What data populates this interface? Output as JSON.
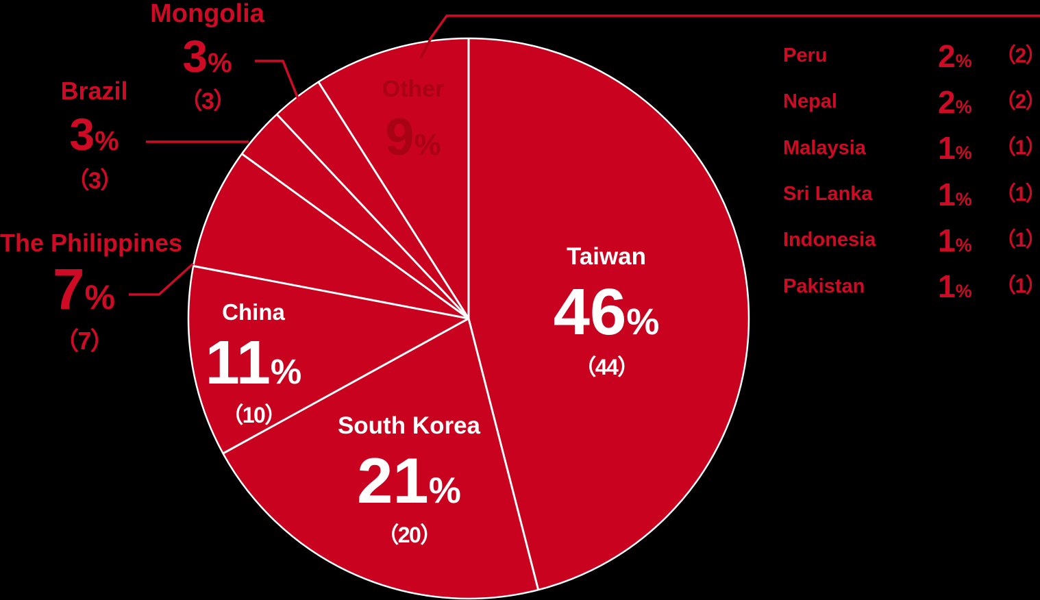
{
  "colors": {
    "background": "#000000",
    "pie_red": "#C9031F",
    "accent_red": "#CE0A24",
    "deep_red": "#A80314",
    "white": "#FFFFFF"
  },
  "percent_symbol": "%",
  "chart_data": {
    "type": "pie",
    "start_angle": "12 o'clock, clockwise",
    "legend_position": "right (breakdown of Other slice)",
    "slices": [
      {
        "label": "Taiwan",
        "percent": 46,
        "count_paren": "（44）"
      },
      {
        "label": "South Korea",
        "percent": 21,
        "count_paren": "（20）"
      },
      {
        "label": "China",
        "percent": 11,
        "count_paren": "（10）"
      },
      {
        "label": "The Philippines",
        "percent": 7,
        "count_paren": "（7）"
      },
      {
        "label": "Brazil",
        "percent": 3,
        "count_paren": "（3）"
      },
      {
        "label": "Mongolia",
        "percent": 3,
        "count_paren": "（3）"
      },
      {
        "label": "Other",
        "percent": 9,
        "count_paren": ""
      }
    ],
    "other_breakdown": [
      {
        "label": "Peru",
        "percent": 2,
        "count_paren": "（2）"
      },
      {
        "label": "Nepal",
        "percent": 2,
        "count_paren": "（2）"
      },
      {
        "label": "Malaysia",
        "percent": 1,
        "count_paren": "（1）"
      },
      {
        "label": "Sri Lanka",
        "percent": 1,
        "count_paren": "（1）"
      },
      {
        "label": "Indonesia",
        "percent": 1,
        "count_paren": "（1）"
      },
      {
        "label": "Pakistan",
        "percent": 1,
        "count_paren": "（1）"
      }
    ]
  }
}
